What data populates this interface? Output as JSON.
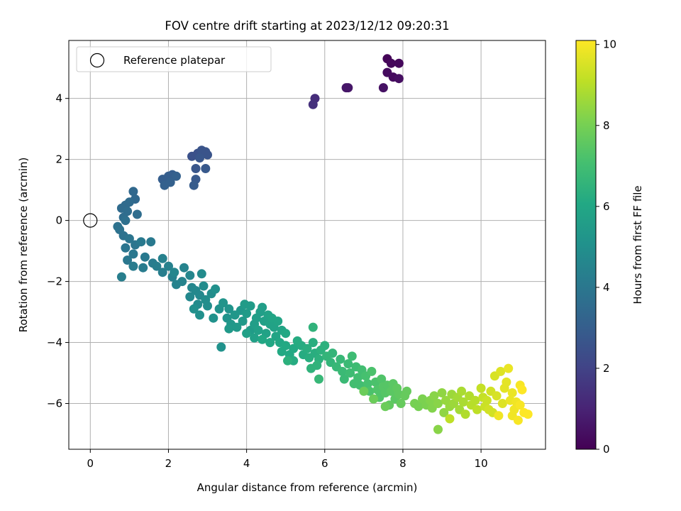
{
  "chart_data": {
    "type": "scatter",
    "title": "FOV centre drift starting at 2023/12/12 09:20:31",
    "xlabel": "Angular distance from reference (arcmin)",
    "ylabel": "Rotation from reference (arcmin)",
    "xlim": [
      -0.55,
      11.65
    ],
    "ylim": [
      -7.5,
      5.9
    ],
    "xticks": [
      0,
      2,
      4,
      6,
      8,
      10
    ],
    "yticks": [
      -6,
      -4,
      -2,
      0,
      2,
      4
    ],
    "grid": true,
    "legend": {
      "location": "top-left",
      "entries": [
        "Reference platepar"
      ]
    },
    "reference_point": {
      "x": 0,
      "y": 0,
      "label": "Reference platepar"
    },
    "colorbar": {
      "label": "Hours from first FF file",
      "colormap": "viridis",
      "range": [
        0,
        10.1
      ],
      "ticks": [
        0,
        2,
        4,
        6,
        8,
        10
      ]
    },
    "points": [
      [
        7.6,
        5.3,
        0.1
      ],
      [
        7.7,
        5.15,
        0.2
      ],
      [
        7.9,
        5.15,
        0.2
      ],
      [
        7.6,
        4.85,
        0.3
      ],
      [
        7.75,
        4.7,
        0.3
      ],
      [
        7.9,
        4.65,
        0.4
      ],
      [
        7.5,
        4.35,
        0.5
      ],
      [
        6.55,
        4.35,
        0.6
      ],
      [
        6.6,
        4.35,
        0.6
      ],
      [
        5.75,
        4.0,
        1.3
      ],
      [
        5.7,
        3.8,
        1.4
      ],
      [
        2.6,
        2.1,
        2.5
      ],
      [
        2.75,
        2.2,
        2.5
      ],
      [
        2.85,
        2.3,
        2.6
      ],
      [
        2.95,
        2.25,
        2.6
      ],
      [
        3.0,
        2.15,
        2.6
      ],
      [
        2.8,
        2.05,
        2.7
      ],
      [
        2.7,
        1.7,
        2.7
      ],
      [
        2.95,
        1.7,
        2.8
      ],
      [
        2.7,
        1.35,
        2.8
      ],
      [
        2.65,
        1.15,
        2.9
      ],
      [
        1.85,
        1.35,
        3.0
      ],
      [
        2.0,
        1.45,
        3.0
      ],
      [
        2.1,
        1.5,
        3.0
      ],
      [
        2.2,
        1.45,
        3.1
      ],
      [
        1.9,
        1.15,
        3.1
      ],
      [
        2.05,
        1.25,
        3.1
      ],
      [
        1.1,
        0.95,
        3.4
      ],
      [
        1.15,
        0.7,
        3.4
      ],
      [
        1.0,
        0.6,
        3.5
      ],
      [
        0.9,
        0.5,
        3.5
      ],
      [
        0.8,
        0.4,
        3.5
      ],
      [
        0.95,
        0.3,
        3.6
      ],
      [
        1.2,
        0.2,
        3.6
      ],
      [
        0.85,
        0.1,
        3.6
      ],
      [
        0.9,
        0.0,
        3.7
      ],
      [
        0.7,
        -0.2,
        3.8
      ],
      [
        0.75,
        -0.3,
        3.8
      ],
      [
        0.85,
        -0.5,
        3.8
      ],
      [
        1.0,
        -0.6,
        3.9
      ],
      [
        1.15,
        -0.8,
        3.9
      ],
      [
        0.9,
        -0.9,
        3.9
      ],
      [
        1.1,
        -1.1,
        4.0
      ],
      [
        0.95,
        -1.3,
        4.0
      ],
      [
        1.3,
        -0.7,
        4.1
      ],
      [
        1.55,
        -0.7,
        4.1
      ],
      [
        1.4,
        -1.2,
        4.1
      ],
      [
        1.6,
        -1.4,
        4.2
      ],
      [
        1.35,
        -1.55,
        4.2
      ],
      [
        1.1,
        -1.5,
        4.2
      ],
      [
        0.8,
        -1.85,
        4.3
      ],
      [
        1.7,
        -1.5,
        4.3
      ],
      [
        1.85,
        -1.7,
        4.3
      ],
      [
        1.85,
        -1.25,
        4.4
      ],
      [
        2.0,
        -1.5,
        4.4
      ],
      [
        2.1,
        -1.85,
        4.4
      ],
      [
        2.2,
        -2.1,
        4.5
      ],
      [
        2.35,
        -2.0,
        4.5
      ],
      [
        2.4,
        -1.55,
        4.5
      ],
      [
        2.15,
        -1.7,
        4.6
      ],
      [
        2.55,
        -1.8,
        4.6
      ],
      [
        2.6,
        -2.2,
        4.6
      ],
      [
        2.7,
        -2.3,
        4.7
      ],
      [
        2.55,
        -2.5,
        4.7
      ],
      [
        2.8,
        -2.45,
        4.7
      ],
      [
        2.9,
        -2.15,
        4.8
      ],
      [
        2.85,
        -1.75,
        4.8
      ],
      [
        2.75,
        -2.75,
        4.8
      ],
      [
        2.95,
        -2.6,
        4.9
      ],
      [
        3.1,
        -2.4,
        4.9
      ],
      [
        3.0,
        -2.8,
        4.9
      ],
      [
        2.65,
        -2.9,
        5.0
      ],
      [
        2.8,
        -3.1,
        5.0
      ],
      [
        3.2,
        -2.25,
        5.0
      ],
      [
        3.15,
        -3.2,
        5.1
      ],
      [
        3.3,
        -2.9,
        5.1
      ],
      [
        3.35,
        -4.15,
        5.1
      ],
      [
        3.4,
        -2.7,
        5.2
      ],
      [
        3.55,
        -2.9,
        5.2
      ],
      [
        3.5,
        -3.2,
        5.2
      ],
      [
        3.6,
        -3.4,
        5.3
      ],
      [
        3.7,
        -3.1,
        5.3
      ],
      [
        3.85,
        -2.95,
        5.3
      ],
      [
        3.55,
        -3.55,
        5.4
      ],
      [
        3.75,
        -3.5,
        5.4
      ],
      [
        3.9,
        -3.3,
        5.4
      ],
      [
        4.0,
        -3.05,
        5.5
      ],
      [
        3.95,
        -2.75,
        5.5
      ],
      [
        4.1,
        -2.8,
        5.5
      ],
      [
        4.1,
        -3.6,
        5.5
      ],
      [
        4.2,
        -3.4,
        5.6
      ],
      [
        4.25,
        -3.2,
        5.6
      ],
      [
        4.35,
        -3.0,
        5.6
      ],
      [
        4.4,
        -2.85,
        5.6
      ],
      [
        4.0,
        -3.7,
        5.7
      ],
      [
        4.2,
        -3.85,
        5.7
      ],
      [
        4.3,
        -3.6,
        5.7
      ],
      [
        4.45,
        -3.3,
        5.7
      ],
      [
        4.55,
        -3.1,
        5.8
      ],
      [
        4.6,
        -3.4,
        5.8
      ],
      [
        4.5,
        -3.7,
        5.8
      ],
      [
        4.7,
        -3.5,
        5.8
      ],
      [
        4.65,
        -3.2,
        5.9
      ],
      [
        4.8,
        -3.3,
        5.9
      ],
      [
        4.75,
        -3.8,
        5.9
      ],
      [
        4.9,
        -3.6,
        5.9
      ],
      [
        4.6,
        -4.0,
        6.0
      ],
      [
        4.85,
        -4.0,
        6.0
      ],
      [
        5.0,
        -3.7,
        6.0
      ],
      [
        4.4,
        -3.9,
        6.0
      ],
      [
        5.0,
        -4.1,
        6.1
      ],
      [
        4.9,
        -4.3,
        6.1
      ],
      [
        5.1,
        -4.4,
        6.1
      ],
      [
        5.2,
        -4.2,
        6.1
      ],
      [
        5.3,
        -3.95,
        6.2
      ],
      [
        5.4,
        -4.1,
        6.2
      ],
      [
        5.2,
        -4.6,
        6.2
      ],
      [
        5.45,
        -4.4,
        6.2
      ],
      [
        5.55,
        -4.2,
        6.3
      ],
      [
        5.6,
        -4.5,
        6.3
      ],
      [
        5.7,
        -4.0,
        6.3
      ],
      [
        5.75,
        -4.35,
        6.3
      ],
      [
        5.85,
        -4.55,
        6.4
      ],
      [
        5.9,
        -4.25,
        6.4
      ],
      [
        6.0,
        -4.1,
        6.4
      ],
      [
        5.05,
        -4.6,
        6.4
      ],
      [
        5.7,
        -3.5,
        6.5
      ],
      [
        5.65,
        -4.85,
        6.5
      ],
      [
        5.8,
        -4.75,
        6.5
      ],
      [
        6.05,
        -4.45,
        6.6
      ],
      [
        6.15,
        -4.65,
        6.6
      ],
      [
        6.2,
        -4.35,
        6.6
      ],
      [
        6.3,
        -4.8,
        6.7
      ],
      [
        5.85,
        -5.2,
        6.7
      ],
      [
        6.4,
        -4.55,
        6.7
      ],
      [
        6.45,
        -4.95,
        6.8
      ],
      [
        6.5,
        -5.2,
        6.8
      ],
      [
        6.6,
        -4.7,
        6.8
      ],
      [
        6.7,
        -4.45,
        6.9
      ],
      [
        6.65,
        -5.0,
        6.9
      ],
      [
        6.8,
        -4.8,
        6.9
      ],
      [
        6.85,
        -5.15,
        7.0
      ],
      [
        6.9,
        -5.4,
        7.0
      ],
      [
        6.95,
        -4.9,
        7.0
      ],
      [
        6.75,
        -5.35,
        7.0
      ],
      [
        7.05,
        -5.1,
        7.1
      ],
      [
        7.1,
        -5.35,
        7.1
      ],
      [
        7.15,
        -5.6,
        7.2
      ],
      [
        7.2,
        -4.95,
        7.2
      ],
      [
        7.3,
        -5.3,
        7.2
      ],
      [
        7.35,
        -5.55,
        7.3
      ],
      [
        7.4,
        -5.8,
        7.3
      ],
      [
        7.45,
        -5.2,
        7.3
      ],
      [
        7.5,
        -5.45,
        7.4
      ],
      [
        7.55,
        -5.65,
        7.4
      ],
      [
        7.6,
        -5.4,
        7.4
      ],
      [
        7.7,
        -5.6,
        7.5
      ],
      [
        7.75,
        -5.35,
        7.5
      ],
      [
        7.8,
        -5.85,
        7.5
      ],
      [
        7.65,
        -6.05,
        7.6
      ],
      [
        7.85,
        -5.5,
        7.6
      ],
      [
        7.9,
        -5.7,
        7.6
      ],
      [
        7.95,
        -6.0,
        7.7
      ],
      [
        8.05,
        -5.75,
        7.7
      ],
      [
        8.1,
        -5.6,
        7.7
      ],
      [
        7.55,
        -6.1,
        7.8
      ],
      [
        7.25,
        -5.85,
        7.8
      ],
      [
        7.0,
        -5.6,
        7.8
      ],
      [
        8.3,
        -6.0,
        8.0
      ],
      [
        8.4,
        -6.1,
        8.0
      ],
      [
        8.5,
        -5.85,
        8.1
      ],
      [
        8.6,
        -6.05,
        8.1
      ],
      [
        8.7,
        -5.9,
        8.2
      ],
      [
        8.75,
        -6.15,
        8.2
      ],
      [
        8.8,
        -5.75,
        8.3
      ],
      [
        8.9,
        -6.0,
        8.3
      ],
      [
        8.9,
        -6.85,
        8.3
      ],
      [
        9.0,
        -5.65,
        8.4
      ],
      [
        9.05,
        -6.3,
        8.4
      ],
      [
        9.1,
        -5.9,
        8.5
      ],
      [
        9.2,
        -6.1,
        8.5
      ],
      [
        9.25,
        -5.7,
        8.6
      ],
      [
        9.3,
        -6.0,
        8.6
      ],
      [
        9.4,
        -5.8,
        8.7
      ],
      [
        9.45,
        -6.2,
        8.7
      ],
      [
        9.5,
        -5.6,
        8.8
      ],
      [
        9.55,
        -5.95,
        8.8
      ],
      [
        9.6,
        -6.35,
        8.9
      ],
      [
        9.7,
        -5.75,
        8.9
      ],
      [
        9.75,
        -6.05,
        9.0
      ],
      [
        9.85,
        -5.9,
        9.0
      ],
      [
        9.9,
        -6.2,
        9.1
      ],
      [
        9.2,
        -6.5,
        9.1
      ],
      [
        10.0,
        -5.5,
        9.2
      ],
      [
        10.05,
        -5.8,
        9.2
      ],
      [
        10.1,
        -6.1,
        9.3
      ],
      [
        10.15,
        -5.9,
        9.3
      ],
      [
        10.25,
        -5.6,
        9.4
      ],
      [
        10.3,
        -6.3,
        9.4
      ],
      [
        10.35,
        -5.1,
        9.5
      ],
      [
        10.4,
        -5.75,
        9.5
      ],
      [
        10.5,
        -4.95,
        9.6
      ],
      [
        10.55,
        -6.0,
        9.6
      ],
      [
        10.6,
        -5.5,
        9.7
      ],
      [
        10.65,
        -5.3,
        9.7
      ],
      [
        10.7,
        -4.85,
        9.8
      ],
      [
        10.75,
        -5.9,
        9.8
      ],
      [
        10.8,
        -5.65,
        9.8
      ],
      [
        10.8,
        -6.4,
        9.9
      ],
      [
        10.85,
        -6.2,
        9.9
      ],
      [
        10.9,
        -5.95,
        9.9
      ],
      [
        10.95,
        -6.55,
        10.0
      ],
      [
        11.0,
        -5.4,
        10.0
      ],
      [
        11.0,
        -6.05,
        10.0
      ],
      [
        11.05,
        -5.55,
        10.1
      ],
      [
        11.1,
        -6.3,
        10.1
      ],
      [
        11.2,
        -6.35,
        10.1
      ],
      [
        10.45,
        -6.4,
        9.9
      ],
      [
        10.2,
        -6.2,
        9.4
      ]
    ]
  }
}
